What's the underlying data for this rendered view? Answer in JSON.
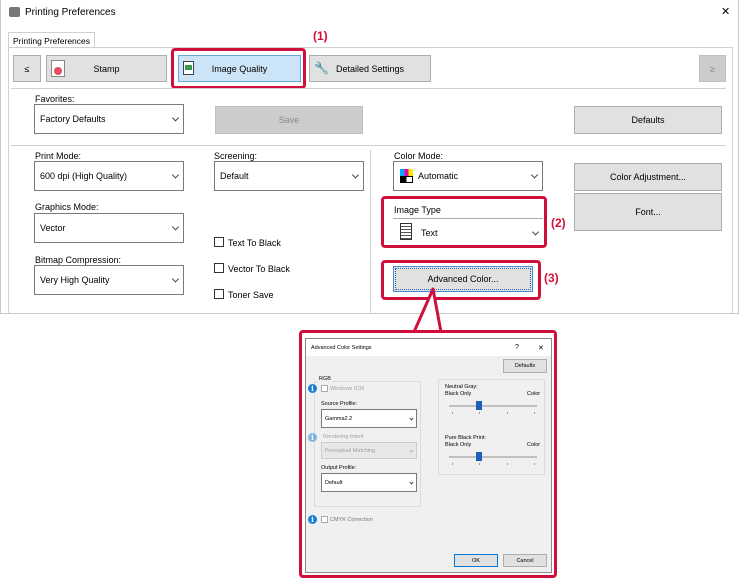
{
  "window": {
    "title": "Printing Preferences",
    "close": "✕"
  },
  "tab": {
    "label": "Printing Preferences"
  },
  "nav": {
    "prev": "≤",
    "next": "≥",
    "items": [
      {
        "label": "Stamp"
      },
      {
        "label": "Image Quality",
        "selected": true
      },
      {
        "label": "Detailed Settings"
      }
    ]
  },
  "favorites": {
    "label": "Favorites:",
    "value": "Factory Defaults",
    "save": "Save",
    "defaults": "Defaults"
  },
  "print_mode": {
    "label": "Print Mode:",
    "value": "600 dpi (High Quality)"
  },
  "screening": {
    "label": "Screening:",
    "value": "Default"
  },
  "graphics_mode": {
    "label": "Graphics Mode:",
    "value": "Vector"
  },
  "bitmap_compression": {
    "label": "Bitmap Compression:",
    "value": "Very High Quality"
  },
  "checkboxes": [
    {
      "label": "Text To Black",
      "checked": false
    },
    {
      "label": "Vector To Black",
      "checked": false
    },
    {
      "label": "Toner Save",
      "checked": false
    }
  ],
  "color_mode": {
    "label": "Color Mode:",
    "value": "Automatic",
    "adjust": "Color Adjustment..."
  },
  "image_type": {
    "label": "Image Type",
    "value": "Text"
  },
  "font_button": "Font...",
  "advanced_color_button": "Advanced Color...",
  "callouts": [
    "(1)",
    "(2)",
    "(3)"
  ],
  "accent_color": "#d0103a",
  "advanced_dialog": {
    "title": "Advanced Color Settings",
    "help": "?",
    "close": "✕",
    "defaults": "Defaults",
    "rgb": {
      "label": "RGB",
      "windows_icm": "Windows ICM",
      "source_profile_label": "Source Profile:",
      "source_profile": "Gamma2.2",
      "rendering_intent_label": "Rendering Intent",
      "rendering_intent": "Perceptual Matching",
      "output_profile_label": "Output Profile:",
      "output_profile": "Default"
    },
    "neutral_gray": {
      "label": "Neutral Gray:",
      "min": "Black Only",
      "max": "Color",
      "level": 1,
      "steps": 3
    },
    "pure_black": {
      "label": "Pure Black Print:",
      "min": "Black Only",
      "max": "Color",
      "level": 1,
      "steps": 3
    },
    "cmyk_correction": "CMYK Correction",
    "ok": "OK",
    "cancel": "Cancel"
  }
}
